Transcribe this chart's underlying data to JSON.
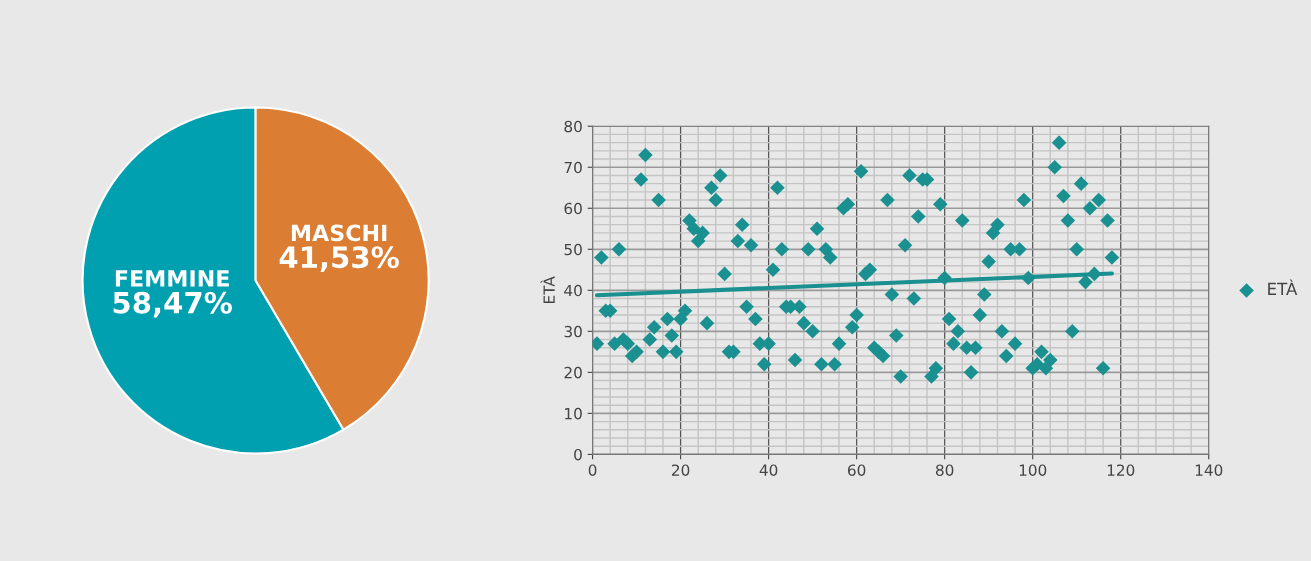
{
  "chart_data": [
    {
      "type": "pie",
      "categories": [
        "FEMMINE",
        "MASCHI"
      ],
      "values": [
        58.47,
        41.53
      ],
      "colors": [
        "#00a0b0",
        "#db7d32"
      ],
      "value_labels": [
        "58,47%",
        "41,53%"
      ]
    },
    {
      "type": "scatter",
      "ylabel": "ETÀ",
      "xlim": [
        0,
        140
      ],
      "ylim": [
        0,
        80
      ],
      "xticks": [
        0,
        20,
        40,
        60,
        80,
        100,
        120,
        140
      ],
      "yticks": [
        0,
        10,
        20,
        30,
        40,
        50,
        60,
        70,
        80
      ],
      "grid": true,
      "legend": "right",
      "series": [
        {
          "name": "ETÀ",
          "color": "#1a9090",
          "marker": "diamond",
          "x": [
            1,
            2,
            3,
            4,
            5,
            6,
            7,
            8,
            9,
            10,
            11,
            12,
            13,
            14,
            15,
            16,
            17,
            18,
            19,
            20,
            21,
            22,
            23,
            24,
            25,
            26,
            27,
            28,
            29,
            30,
            31,
            32,
            33,
            34,
            35,
            36,
            37,
            38,
            39,
            40,
            41,
            42,
            43,
            44,
            45,
            46,
            47,
            48,
            49,
            50,
            51,
            52,
            53,
            54,
            55,
            56,
            57,
            58,
            59,
            60,
            61,
            62,
            63,
            64,
            65,
            66,
            67,
            68,
            69,
            70,
            71,
            72,
            73,
            74,
            75,
            76,
            77,
            78,
            79,
            80,
            81,
            82,
            83,
            84,
            85,
            86,
            87,
            88,
            89,
            90,
            91,
            92,
            93,
            94,
            95,
            96,
            97,
            98,
            99,
            100,
            101,
            102,
            103,
            104,
            105,
            106,
            107,
            108,
            109,
            110,
            111,
            112,
            113,
            114,
            115,
            116,
            117,
            118
          ],
          "values": [
            27,
            48,
            35,
            35,
            27,
            50,
            28,
            27,
            24,
            25,
            67,
            73,
            28,
            31,
            62,
            25,
            33,
            29,
            25,
            33,
            35,
            57,
            55,
            52,
            54,
            32,
            65,
            62,
            68,
            44,
            25,
            25,
            52,
            56,
            36,
            51,
            33,
            27,
            22,
            27,
            45,
            65,
            50,
            36,
            36,
            23,
            36,
            32,
            50,
            30,
            55,
            22,
            50,
            48,
            22,
            27,
            60,
            61,
            31,
            34,
            69,
            44,
            45,
            26,
            25,
            24,
            62,
            39,
            29,
            19,
            51,
            68,
            38,
            58,
            67,
            67,
            19,
            21,
            61,
            43,
            33,
            27,
            30,
            57,
            26,
            20,
            26,
            34,
            39,
            47,
            54,
            56,
            30,
            24,
            50,
            27,
            50,
            62,
            43,
            21,
            22,
            25,
            21,
            23,
            70,
            76,
            63,
            57,
            30,
            50,
            66,
            42,
            60,
            44,
            62,
            21,
            57,
            48
          ]
        },
        {
          "type": "line",
          "color": "#1a9090",
          "marker": "none",
          "x": [
            1,
            118
          ],
          "values": [
            38.8,
            44.1
          ]
        }
      ]
    }
  ]
}
